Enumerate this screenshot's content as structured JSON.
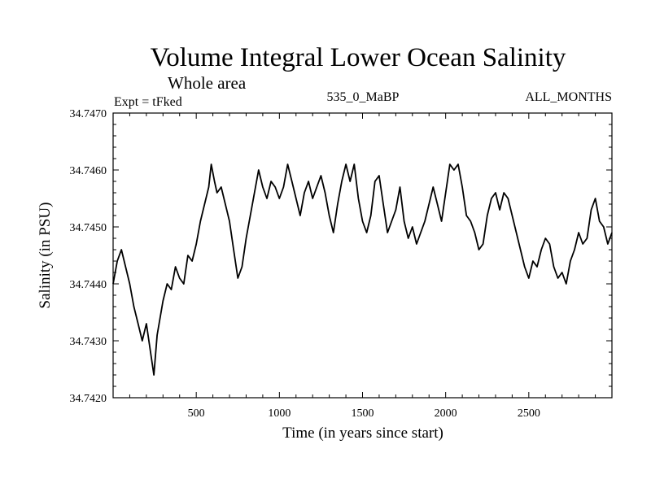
{
  "chart_data": {
    "type": "line",
    "title": "Volume Integral Lower Ocean Salinity",
    "subtitle": "Whole area",
    "experiment_label": "Expt = tFked",
    "period_label": "535_0_MaBP",
    "months_label": "ALL_MONTHS",
    "xlabel": "Time (in years since start)",
    "ylabel": "Salinity (in PSU)",
    "xlim": [
      0,
      3000
    ],
    "ylim": [
      34.742,
      34.747
    ],
    "xticks": [
      500,
      1000,
      1500,
      2000,
      2500
    ],
    "xtick_labels": [
      "500",
      "1000",
      "1500",
      "2000",
      "2500"
    ],
    "yticks": [
      34.742,
      34.743,
      34.744,
      34.745,
      34.746,
      34.747
    ],
    "ytick_labels": [
      "34.7420",
      "34.7430",
      "34.7440",
      "34.7450",
      "34.7460",
      "34.7470"
    ],
    "grid": false,
    "series": [
      {
        "color": "#000000",
        "x": [
          0,
          25,
          50,
          75,
          100,
          125,
          150,
          175,
          200,
          225,
          245,
          265,
          300,
          325,
          350,
          375,
          400,
          425,
          450,
          475,
          500,
          525,
          550,
          575,
          590,
          610,
          625,
          650,
          675,
          700,
          725,
          750,
          775,
          800,
          825,
          850,
          875,
          900,
          925,
          950,
          975,
          1000,
          1025,
          1050,
          1075,
          1100,
          1125,
          1150,
          1175,
          1200,
          1225,
          1250,
          1275,
          1300,
          1325,
          1350,
          1375,
          1400,
          1425,
          1450,
          1475,
          1500,
          1525,
          1550,
          1575,
          1600,
          1625,
          1650,
          1675,
          1700,
          1725,
          1750,
          1775,
          1800,
          1825,
          1850,
          1875,
          1900,
          1925,
          1950,
          1975,
          2000,
          2025,
          2050,
          2075,
          2100,
          2125,
          2150,
          2175,
          2200,
          2225,
          2250,
          2275,
          2300,
          2325,
          2350,
          2375,
          2400,
          2425,
          2450,
          2475,
          2500,
          2525,
          2550,
          2575,
          2600,
          2625,
          2650,
          2675,
          2700,
          2725,
          2750,
          2775,
          2800,
          2825,
          2850,
          2875,
          2900,
          2925,
          2950,
          2975,
          3000
        ],
        "values": [
          34.744,
          34.7444,
          34.7446,
          34.7443,
          34.744,
          34.7436,
          34.7433,
          34.743,
          34.7433,
          34.7428,
          34.7424,
          34.7431,
          34.7437,
          34.744,
          34.7439,
          34.7443,
          34.7441,
          34.744,
          34.7445,
          34.7444,
          34.7447,
          34.7451,
          34.7454,
          34.7457,
          34.7461,
          34.7458,
          34.7456,
          34.7457,
          34.7454,
          34.7451,
          34.7446,
          34.7441,
          34.7443,
          34.7448,
          34.7452,
          34.7456,
          34.746,
          34.7457,
          34.7455,
          34.7458,
          34.7457,
          34.7455,
          34.7457,
          34.7461,
          34.7458,
          34.7455,
          34.7452,
          34.7456,
          34.7458,
          34.7455,
          34.7457,
          34.7459,
          34.7456,
          34.7452,
          34.7449,
          34.7454,
          34.7458,
          34.7461,
          34.7458,
          34.7461,
          34.7455,
          34.7451,
          34.7449,
          34.7452,
          34.7458,
          34.7459,
          34.7454,
          34.7449,
          34.7451,
          34.7453,
          34.7457,
          34.7451,
          34.7448,
          34.745,
          34.7447,
          34.7449,
          34.7451,
          34.7454,
          34.7457,
          34.7454,
          34.7451,
          34.7456,
          34.7461,
          34.746,
          34.7461,
          34.7457,
          34.7452,
          34.7451,
          34.7449,
          34.7446,
          34.7447,
          34.7452,
          34.7455,
          34.7456,
          34.7453,
          34.7456,
          34.7455,
          34.7452,
          34.7449,
          34.7446,
          34.7443,
          34.7441,
          34.7444,
          34.7443,
          34.7446,
          34.7448,
          34.7447,
          34.7443,
          34.7441,
          34.7442,
          34.744,
          34.7444,
          34.7446,
          34.7449,
          34.7447,
          34.7448,
          34.7453,
          34.7455,
          34.7451,
          34.745,
          34.7447,
          34.7449
        ]
      }
    ]
  }
}
